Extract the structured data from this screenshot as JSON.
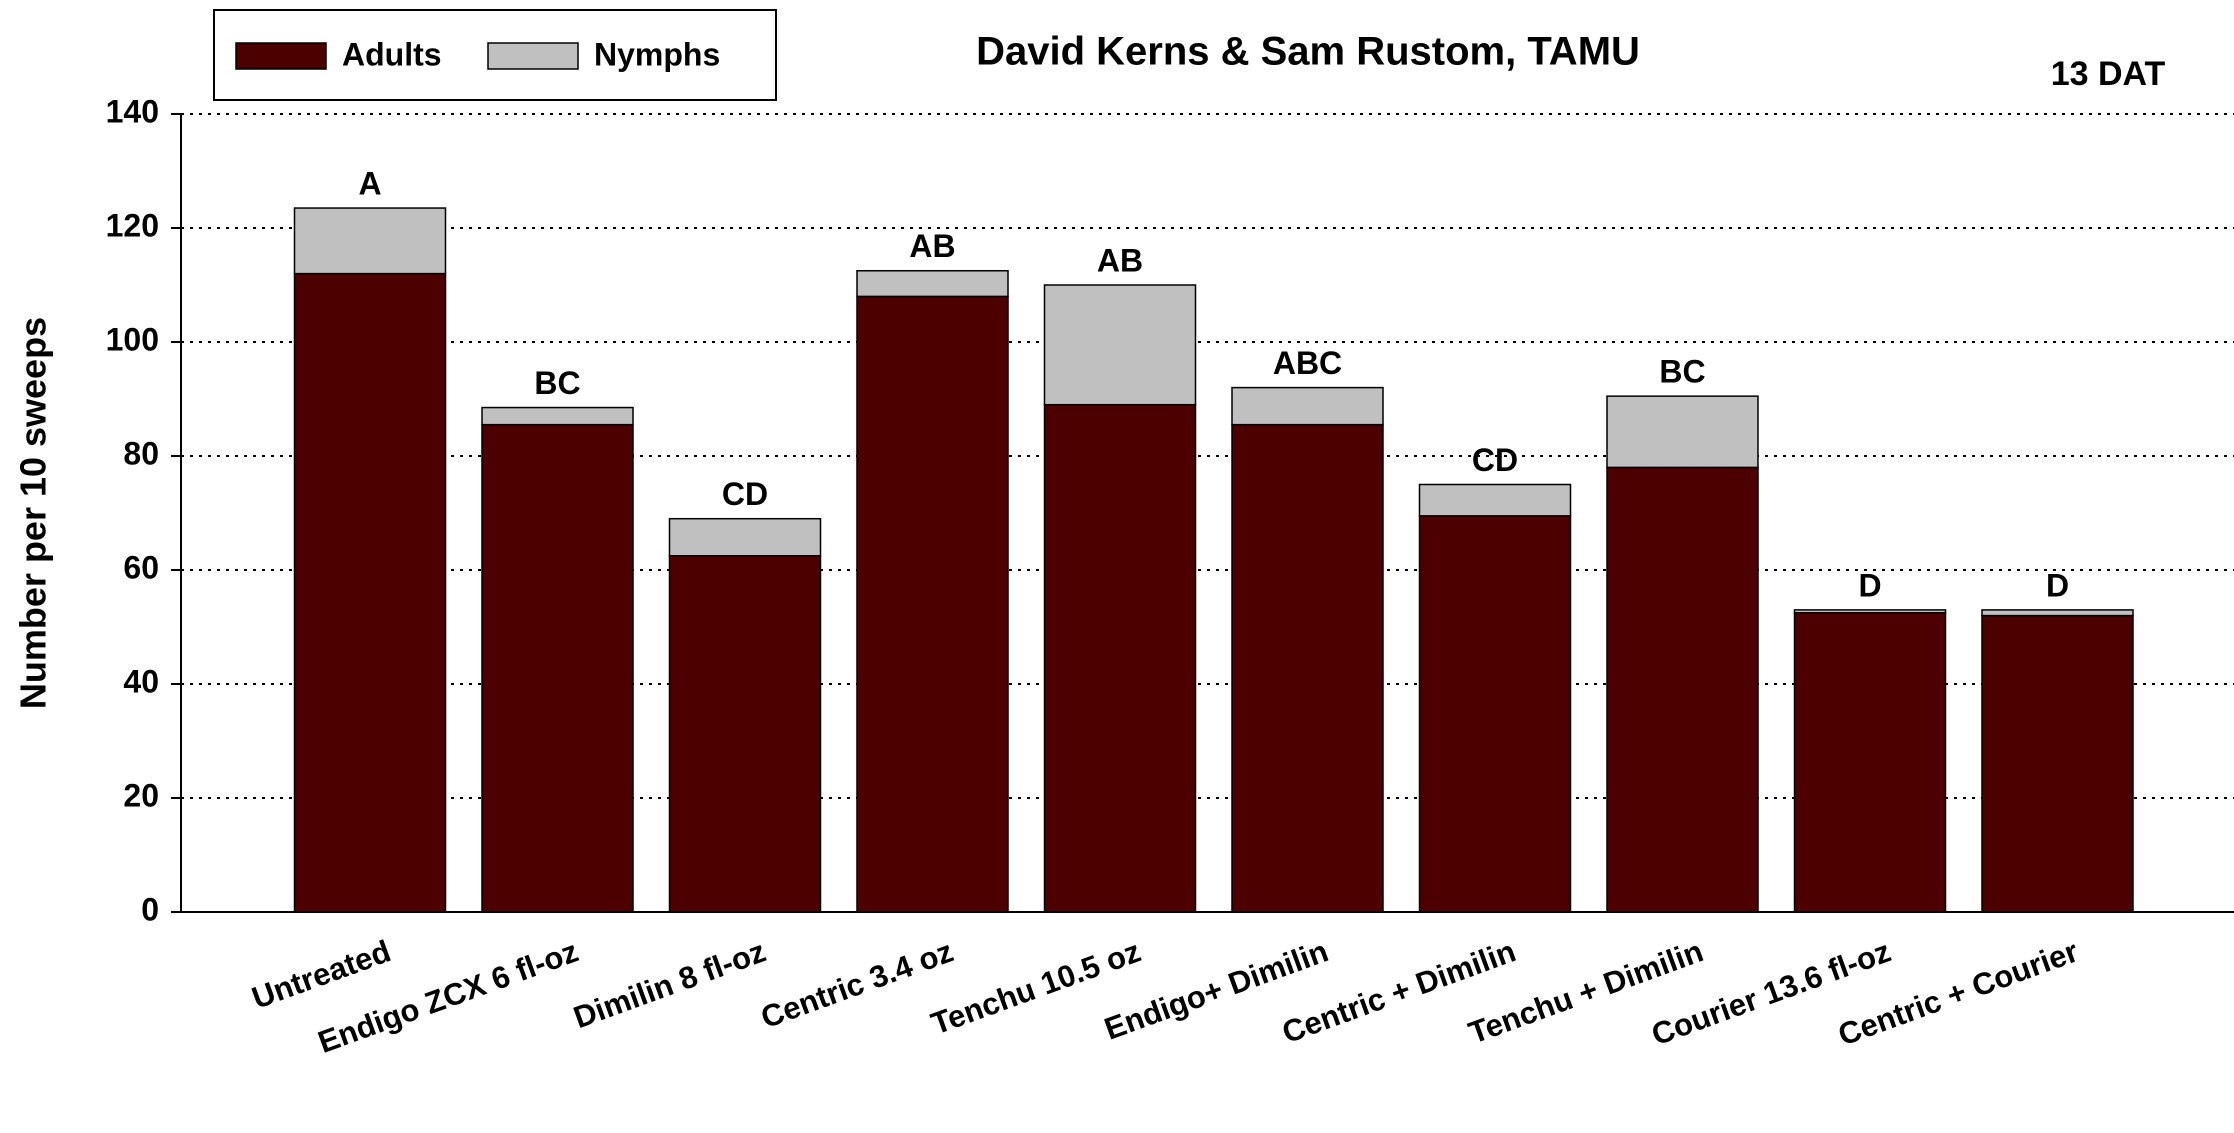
{
  "chart_data": {
    "type": "stacked_bar",
    "title": "David Kerns & Sam Rustom, TAMU",
    "subtitle": "13 DAT",
    "y_label": "Number per 10 sweeps",
    "categories": [
      "Untreated",
      "Endigo ZCX 6 fl-oz",
      "Dimilin 8 fl-oz",
      "Centric 3.4 oz",
      "Tenchu 10.5 oz",
      "Endigo+ Dimilin",
      "Centric + Dimilin",
      "Tenchu + Dimilin",
      "Courier 13.6 fl-oz",
      "Centric + Courier"
    ],
    "series": [
      {
        "name": "Adults",
        "color": "#4d0000",
        "values": [
          112,
          85.5,
          62.5,
          108,
          89,
          85.5,
          69.5,
          78,
          52.5,
          52
        ]
      },
      {
        "name": "Nymphs",
        "color": "#c0c0c0",
        "values": [
          11.5,
          3,
          6.5,
          4.5,
          21,
          6.5,
          5.5,
          12.5,
          0.5,
          1
        ]
      }
    ],
    "annotations": [
      "A",
      "BC",
      "CD",
      "AB",
      "AB",
      "ABC",
      "CD",
      "BC",
      "D",
      "D"
    ],
    "ylim": [
      0,
      140
    ],
    "yticks": [
      0,
      20,
      40,
      60,
      80,
      100,
      120,
      140
    ],
    "grid": true,
    "legend": "top-left"
  }
}
